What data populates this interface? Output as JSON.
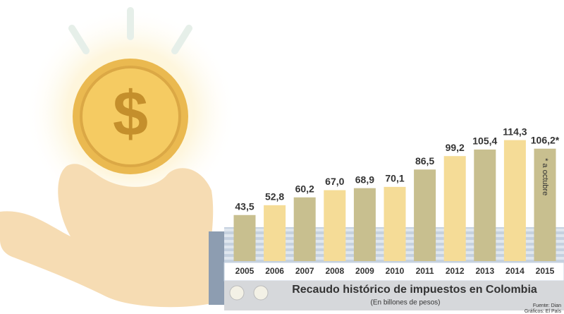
{
  "chart_data": {
    "type": "bar",
    "title": "Recaudo histórico de impuestos en Colombia",
    "subtitle": "(En billones de pesos)",
    "categories": [
      "2005",
      "2006",
      "2007",
      "2008",
      "2009",
      "2010",
      "2011",
      "2012",
      "2013",
      "2014",
      "2015"
    ],
    "values": [
      43.5,
      52.8,
      60.2,
      67.0,
      68.9,
      70.1,
      86.5,
      99.2,
      105.4,
      114.3,
      106.2
    ],
    "value_labels": [
      "43,5",
      "52,8",
      "60,2",
      "67,0",
      "68,9",
      "70,1",
      "86,5",
      "99,2",
      "105,4",
      "114,3",
      "106,2*"
    ],
    "colors": [
      "#c8bf8f",
      "#f5dc97",
      "#c8bf8f",
      "#f5dc97",
      "#c8bf8f",
      "#f5dc97",
      "#c8bf8f",
      "#f5dc97",
      "#c8bf8f",
      "#f5dc97",
      "#c8bf8f"
    ],
    "annotation": "* a octubre",
    "source": "Fuente: Dian",
    "credit": "Gráficos: El País"
  },
  "illustration": {
    "symbol": "$"
  }
}
